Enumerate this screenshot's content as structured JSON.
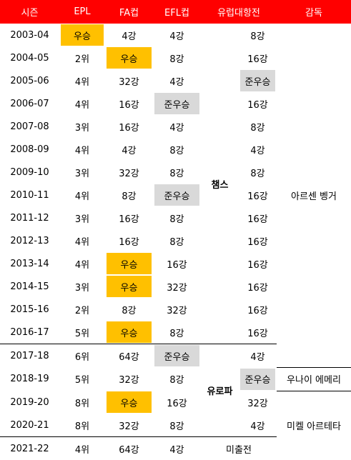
{
  "header": [
    "시즌",
    "EPL",
    "FA컵",
    "EFL컵",
    "유럽대항전",
    "감독"
  ],
  "rows": [
    [
      "2003-04",
      "우승",
      "4강",
      "4강",
      "8강"
    ],
    [
      "2004-05",
      "2위",
      "우승",
      "8강",
      "16강"
    ],
    [
      "2005-06",
      "4위",
      "32강",
      "4강",
      "준우승"
    ],
    [
      "2006-07",
      "4위",
      "16강",
      "준우승",
      "16강"
    ],
    [
      "2007-08",
      "3위",
      "16강",
      "4강",
      "8강"
    ],
    [
      "2008-09",
      "4위",
      "4강",
      "8강",
      "4강"
    ],
    [
      "2009-10",
      "3위",
      "32강",
      "8강",
      "8강"
    ],
    [
      "2010-11",
      "4위",
      "8강",
      "준우승",
      "16강"
    ],
    [
      "2011-12",
      "3위",
      "16강",
      "8강",
      "16강"
    ],
    [
      "2012-13",
      "4위",
      "16강",
      "8강",
      "16강"
    ],
    [
      "2013-14",
      "4위",
      "우승",
      "16강",
      "16강"
    ],
    [
      "2014-15",
      "3위",
      "우승",
      "32강",
      "16강"
    ],
    [
      "2015-16",
      "2위",
      "8강",
      "32강",
      "16강"
    ],
    [
      "2016-17",
      "5위",
      "우승",
      "8강",
      "16강"
    ],
    [
      "2017-18",
      "6위",
      "64강",
      "준우승",
      "4강"
    ],
    [
      "2018-19",
      "5위",
      "32강",
      "8강",
      "준우승"
    ],
    [
      "2019-20",
      "8위",
      "우승",
      "16강",
      "32강"
    ],
    [
      "2020-21",
      "8위",
      "32강",
      "8강",
      "4강"
    ],
    [
      "2021-22",
      "4위",
      "64강",
      "4강"
    ]
  ],
  "europe": [
    {
      "label": "챔스",
      "rows": 14
    },
    {
      "label": "유로파",
      "rows": 4
    },
    {
      "label": "미출전",
      "rows": 1
    }
  ],
  "managers": [
    {
      "name": "아르센 벵거",
      "rows": 15
    },
    {
      "name": "우나이 에메리",
      "rows": 1
    },
    {
      "name": "미켈 아르테타",
      "rows": 3
    }
  ]
}
